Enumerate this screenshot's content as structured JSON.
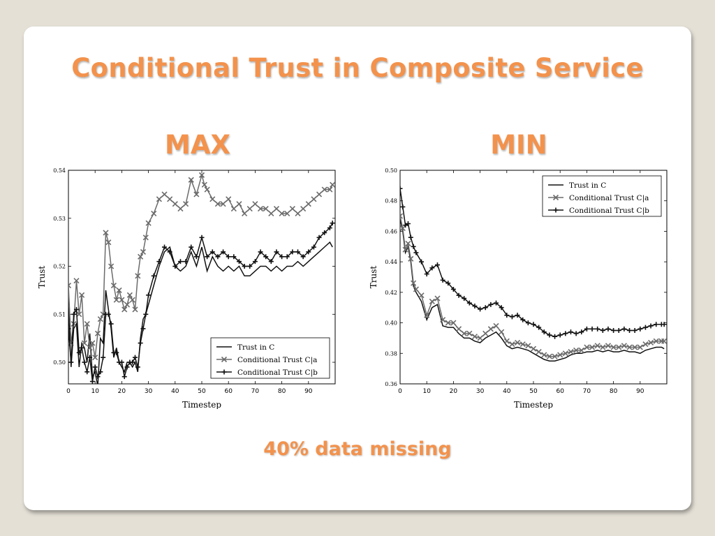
{
  "slide": {
    "title": "Conditional Trust in Composite Service",
    "caption": "40% data missing"
  },
  "colors": {
    "accent": "#f3924c",
    "series_dark": "#111111",
    "series_gray": "#6b6b6b"
  },
  "chart_data": [
    {
      "type": "line",
      "title": "MAX",
      "xlabel": "Timestep",
      "ylabel": "Trust",
      "xlim": [
        0,
        100
      ],
      "ylim": [
        0.4955,
        0.54
      ],
      "xticks": [
        0,
        10,
        20,
        30,
        40,
        50,
        60,
        70,
        80,
        90
      ],
      "yticks": [
        0.5,
        0.51,
        0.52,
        0.53,
        0.54
      ],
      "legend_position": "bottom-right",
      "series": [
        {
          "name": "Trust in C",
          "marker": "none",
          "style": "dark",
          "x": [
            0,
            1,
            2,
            3,
            4,
            5,
            6,
            7,
            8,
            9,
            10,
            11,
            12,
            13,
            14,
            15,
            16,
            17,
            18,
            19,
            20,
            21,
            22,
            23,
            24,
            25,
            26,
            27,
            28,
            29,
            30,
            32,
            34,
            36,
            38,
            40,
            42,
            44,
            46,
            48,
            50,
            52,
            54,
            56,
            58,
            60,
            62,
            64,
            66,
            68,
            70,
            72,
            74,
            76,
            78,
            80,
            82,
            84,
            86,
            88,
            90,
            92,
            94,
            96,
            98,
            99
          ],
          "y": [
            0.512,
            0.499,
            0.507,
            0.508,
            0.499,
            0.504,
            0.503,
            0.5,
            0.506,
            0.497,
            0.498,
            0.495,
            0.505,
            0.504,
            0.515,
            0.511,
            0.507,
            0.501,
            0.503,
            0.5,
            0.499,
            0.498,
            0.5,
            0.5,
            0.499,
            0.5,
            0.498,
            0.505,
            0.509,
            0.51,
            0.512,
            0.516,
            0.52,
            0.523,
            0.524,
            0.52,
            0.519,
            0.52,
            0.523,
            0.52,
            0.524,
            0.519,
            0.522,
            0.52,
            0.519,
            0.52,
            0.519,
            0.52,
            0.518,
            0.518,
            0.519,
            0.52,
            0.52,
            0.519,
            0.52,
            0.519,
            0.52,
            0.52,
            0.521,
            0.52,
            0.521,
            0.522,
            0.523,
            0.524,
            0.525,
            0.524
          ]
        },
        {
          "name": "Conditional Trust C|a",
          "marker": "x",
          "style": "gray",
          "x": [
            0,
            1,
            2,
            3,
            4,
            5,
            6,
            7,
            8,
            9,
            10,
            11,
            12,
            13,
            14,
            15,
            16,
            17,
            18,
            19,
            20,
            21,
            22,
            23,
            24,
            25,
            26,
            27,
            28,
            29,
            30,
            32,
            34,
            36,
            38,
            40,
            42,
            44,
            46,
            48,
            50,
            51,
            52,
            54,
            56,
            58,
            60,
            62,
            64,
            66,
            68,
            70,
            72,
            74,
            76,
            78,
            80,
            82,
            84,
            86,
            88,
            90,
            92,
            94,
            96,
            98,
            99
          ],
          "y": [
            0.516,
            0.504,
            0.508,
            0.517,
            0.51,
            0.514,
            0.504,
            0.508,
            0.503,
            0.504,
            0.501,
            0.506,
            0.509,
            0.51,
            0.527,
            0.525,
            0.52,
            0.516,
            0.513,
            0.515,
            0.513,
            0.511,
            0.512,
            0.514,
            0.513,
            0.511,
            0.518,
            0.522,
            0.523,
            0.526,
            0.529,
            0.531,
            0.534,
            0.535,
            0.534,
            0.533,
            0.532,
            0.533,
            0.538,
            0.535,
            0.539,
            0.537,
            0.536,
            0.534,
            0.533,
            0.533,
            0.534,
            0.532,
            0.533,
            0.531,
            0.532,
            0.533,
            0.532,
            0.532,
            0.531,
            0.532,
            0.531,
            0.531,
            0.532,
            0.531,
            0.532,
            0.533,
            0.534,
            0.535,
            0.536,
            0.536,
            0.537
          ]
        },
        {
          "name": "Conditional Trust C|b",
          "marker": "+",
          "style": "dark",
          "x": [
            0,
            1,
            2,
            3,
            4,
            5,
            6,
            7,
            8,
            9,
            10,
            11,
            12,
            13,
            14,
            15,
            16,
            17,
            18,
            19,
            20,
            21,
            22,
            23,
            24,
            25,
            26,
            27,
            28,
            29,
            30,
            32,
            34,
            36,
            38,
            40,
            42,
            44,
            46,
            48,
            50,
            52,
            54,
            56,
            58,
            60,
            62,
            64,
            66,
            68,
            70,
            72,
            74,
            76,
            78,
            80,
            82,
            84,
            86,
            88,
            90,
            92,
            94,
            96,
            98,
            99
          ],
          "y": [
            0.507,
            0.5,
            0.51,
            0.511,
            0.502,
            0.503,
            0.5,
            0.498,
            0.501,
            0.496,
            0.499,
            0.497,
            0.498,
            0.501,
            0.51,
            0.51,
            0.508,
            0.502,
            0.502,
            0.5,
            0.5,
            0.497,
            0.499,
            0.5,
            0.5,
            0.501,
            0.499,
            0.504,
            0.507,
            0.51,
            0.514,
            0.518,
            0.521,
            0.524,
            0.523,
            0.52,
            0.521,
            0.521,
            0.524,
            0.522,
            0.526,
            0.522,
            0.523,
            0.522,
            0.523,
            0.522,
            0.522,
            0.521,
            0.52,
            0.52,
            0.521,
            0.523,
            0.522,
            0.521,
            0.523,
            0.522,
            0.522,
            0.523,
            0.523,
            0.522,
            0.523,
            0.524,
            0.526,
            0.527,
            0.528,
            0.529
          ]
        }
      ]
    },
    {
      "type": "line",
      "title": "MIN",
      "xlabel": "Timestep",
      "ylabel": "Trust",
      "xlim": [
        0,
        100
      ],
      "ylim": [
        0.36,
        0.5
      ],
      "xticks": [
        0,
        10,
        20,
        30,
        40,
        50,
        60,
        70,
        80,
        90
      ],
      "yticks": [
        0.36,
        0.38,
        0.4,
        0.42,
        0.44,
        0.46,
        0.48,
        0.5
      ],
      "legend_position": "top-right",
      "series": [
        {
          "name": "Trust in C",
          "marker": "none",
          "style": "dark",
          "x": [
            0,
            1,
            2,
            3,
            4,
            5,
            6,
            8,
            10,
            12,
            14,
            16,
            18,
            20,
            22,
            24,
            26,
            28,
            30,
            32,
            34,
            36,
            38,
            40,
            42,
            44,
            46,
            48,
            50,
            52,
            54,
            56,
            58,
            60,
            62,
            64,
            66,
            68,
            70,
            72,
            74,
            76,
            78,
            80,
            82,
            84,
            86,
            88,
            90,
            92,
            94,
            96,
            98,
            99
          ],
          "y": [
            0.468,
            0.46,
            0.446,
            0.45,
            0.44,
            0.424,
            0.42,
            0.414,
            0.402,
            0.41,
            0.412,
            0.398,
            0.397,
            0.397,
            0.393,
            0.39,
            0.39,
            0.388,
            0.387,
            0.39,
            0.392,
            0.394,
            0.39,
            0.385,
            0.383,
            0.384,
            0.383,
            0.382,
            0.38,
            0.378,
            0.376,
            0.375,
            0.375,
            0.376,
            0.377,
            0.379,
            0.38,
            0.38,
            0.381,
            0.381,
            0.382,
            0.381,
            0.382,
            0.381,
            0.381,
            0.382,
            0.381,
            0.381,
            0.38,
            0.382,
            0.383,
            0.384,
            0.384,
            0.383
          ]
        },
        {
          "name": "Conditional Trust C|a",
          "marker": "x",
          "style": "gray",
          "x": [
            0,
            1,
            2,
            3,
            4,
            5,
            6,
            8,
            10,
            12,
            14,
            16,
            18,
            20,
            22,
            24,
            26,
            28,
            30,
            32,
            34,
            36,
            38,
            40,
            42,
            44,
            46,
            48,
            50,
            52,
            54,
            56,
            58,
            60,
            62,
            64,
            66,
            68,
            70,
            72,
            74,
            76,
            78,
            80,
            82,
            84,
            86,
            88,
            90,
            92,
            94,
            96,
            98,
            99
          ],
          "y": [
            0.47,
            0.462,
            0.448,
            0.452,
            0.442,
            0.426,
            0.422,
            0.418,
            0.405,
            0.414,
            0.416,
            0.402,
            0.4,
            0.4,
            0.396,
            0.393,
            0.393,
            0.391,
            0.39,
            0.393,
            0.396,
            0.398,
            0.394,
            0.388,
            0.386,
            0.387,
            0.386,
            0.385,
            0.383,
            0.381,
            0.379,
            0.378,
            0.378,
            0.379,
            0.38,
            0.381,
            0.382,
            0.382,
            0.384,
            0.384,
            0.385,
            0.384,
            0.385,
            0.384,
            0.384,
            0.385,
            0.384,
            0.384,
            0.384,
            0.386,
            0.387,
            0.388,
            0.388,
            0.388
          ]
        },
        {
          "name": "Conditional Trust C|b",
          "marker": "+",
          "style": "dark",
          "x": [
            0,
            1,
            2,
            3,
            4,
            5,
            6,
            8,
            10,
            12,
            14,
            16,
            18,
            20,
            22,
            24,
            26,
            28,
            30,
            32,
            34,
            36,
            38,
            40,
            42,
            44,
            46,
            48,
            50,
            52,
            54,
            56,
            58,
            60,
            62,
            64,
            66,
            68,
            70,
            72,
            74,
            76,
            78,
            80,
            82,
            84,
            86,
            88,
            90,
            92,
            94,
            96,
            98,
            99
          ],
          "y": [
            0.488,
            0.476,
            0.464,
            0.465,
            0.456,
            0.45,
            0.446,
            0.44,
            0.432,
            0.436,
            0.438,
            0.428,
            0.426,
            0.422,
            0.418,
            0.416,
            0.413,
            0.411,
            0.409,
            0.41,
            0.412,
            0.413,
            0.41,
            0.405,
            0.404,
            0.405,
            0.402,
            0.4,
            0.399,
            0.397,
            0.394,
            0.392,
            0.391,
            0.392,
            0.393,
            0.394,
            0.393,
            0.394,
            0.396,
            0.396,
            0.396,
            0.395,
            0.396,
            0.395,
            0.395,
            0.396,
            0.395,
            0.395,
            0.396,
            0.397,
            0.398,
            0.399,
            0.399,
            0.399
          ]
        }
      ]
    }
  ]
}
